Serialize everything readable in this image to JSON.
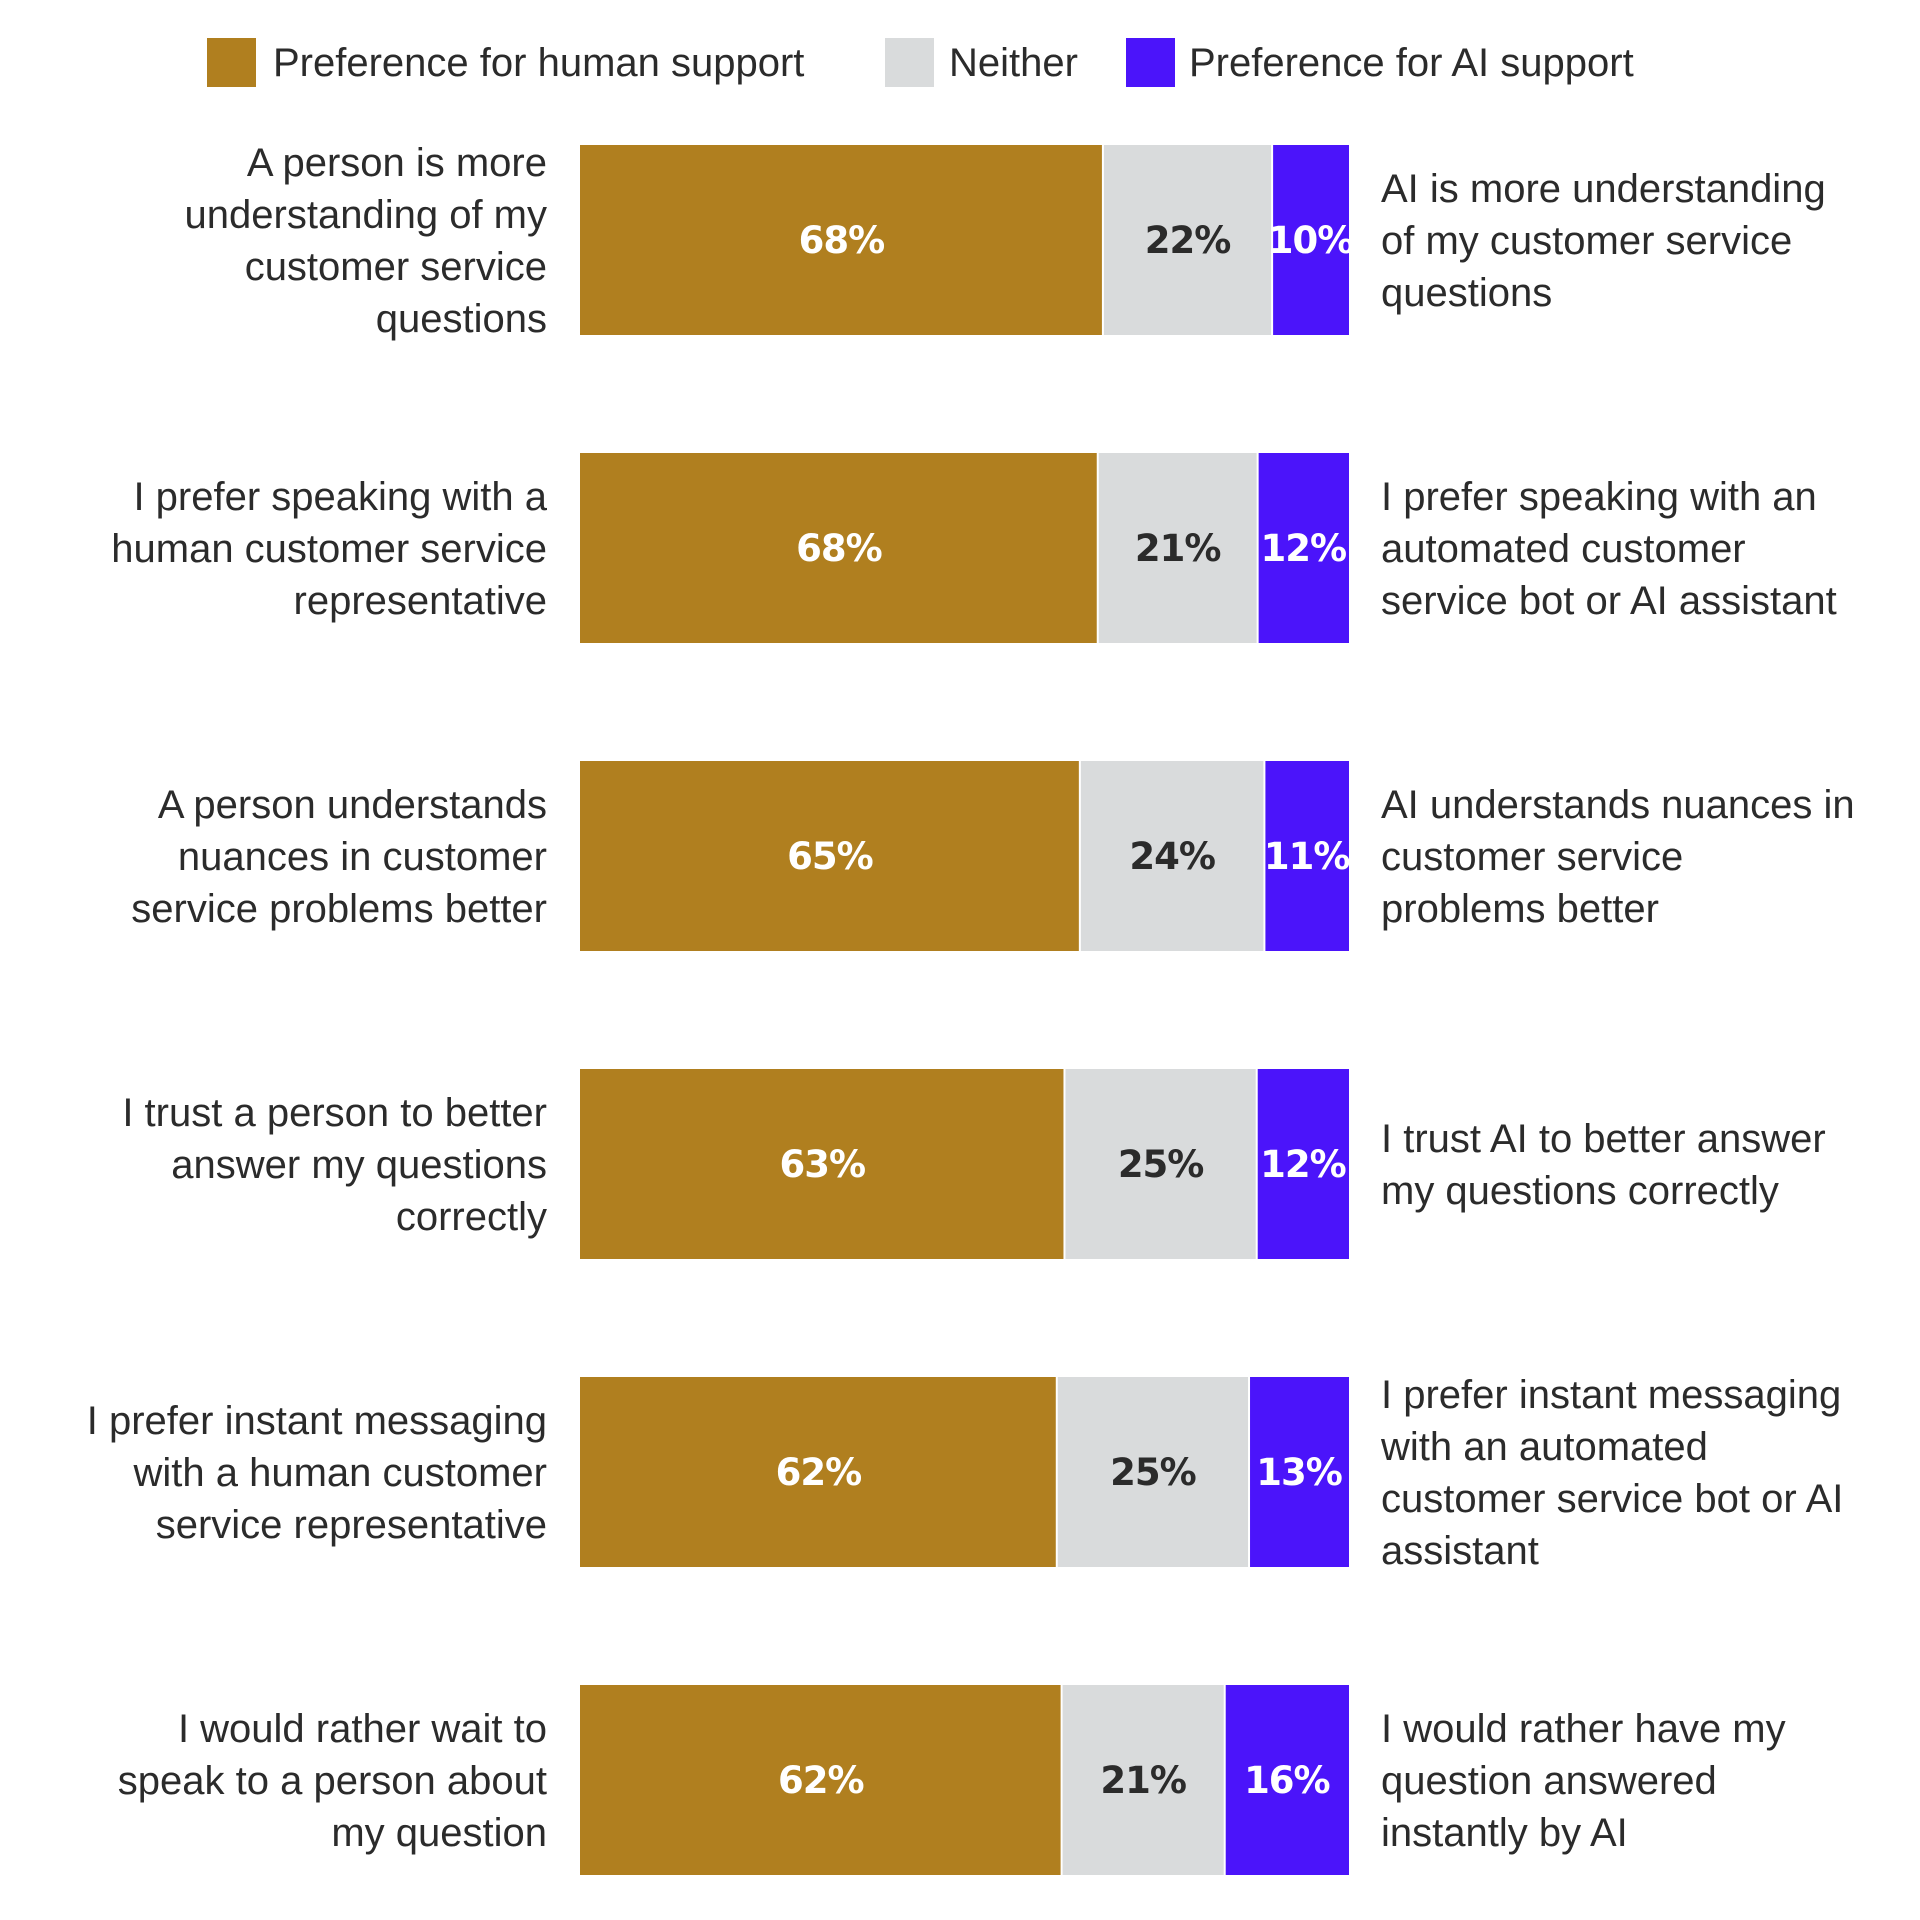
{
  "legend": {
    "human": "Preference for human support",
    "neither": "Neither",
    "ai": "Preference for AI support"
  },
  "colors": {
    "human": "#b07f1f",
    "neither": "#d9dbdc",
    "ai": "#4b14fa",
    "human_label": "#ffffff",
    "neither_label": "#2b2b2b",
    "ai_label": "#ffffff"
  },
  "chart_data": {
    "type": "bar",
    "orientation": "horizontal",
    "stacked": true,
    "grid": false,
    "legend_position": "top",
    "xlim": [
      0,
      100
    ],
    "series": [
      {
        "name": "Preference for human support",
        "key": "human",
        "values": [
          68,
          68,
          65,
          63,
          62,
          62
        ]
      },
      {
        "name": "Neither",
        "key": "neither",
        "values": [
          22,
          21,
          24,
          25,
          25,
          21
        ]
      },
      {
        "name": "Preference for AI support",
        "key": "ai",
        "values": [
          10,
          12,
          11,
          12,
          13,
          16
        ]
      }
    ],
    "data_labels": [
      [
        "68%",
        "22%",
        "10%"
      ],
      [
        "68%",
        "21%",
        "12%"
      ],
      [
        "65%",
        "24%",
        "11%"
      ],
      [
        "63%",
        "25%",
        "12%"
      ],
      [
        "62%",
        "25%",
        "13%"
      ],
      [
        "62%",
        "21%",
        "16%"
      ]
    ],
    "left_labels": [
      [
        "A person is more",
        "understanding of my",
        "customer service",
        "questions"
      ],
      [
        "I prefer speaking with a",
        "human customer service",
        "representative"
      ],
      [
        "A person understands",
        "nuances in customer",
        "service problems better"
      ],
      [
        "I trust a person to better",
        "answer my questions",
        "correctly"
      ],
      [
        "I prefer instant messaging",
        "with a human customer",
        "service representative"
      ],
      [
        "I would rather wait to",
        "speak to a person about",
        "my question"
      ]
    ],
    "right_labels": [
      [
        "AI is more understanding",
        "of my customer service",
        "questions"
      ],
      [
        "I prefer speaking with an",
        "automated customer",
        "service bot or AI assistant"
      ],
      [
        "AI understands nuances in",
        "customer service",
        "problems better"
      ],
      [
        "I trust AI to better answer",
        "my questions correctly"
      ],
      [
        "I prefer instant messaging",
        "with an automated",
        "customer service bot or AI",
        "assistant"
      ],
      [
        "I would rather have my",
        "question answered",
        "instantly by AI"
      ]
    ]
  }
}
